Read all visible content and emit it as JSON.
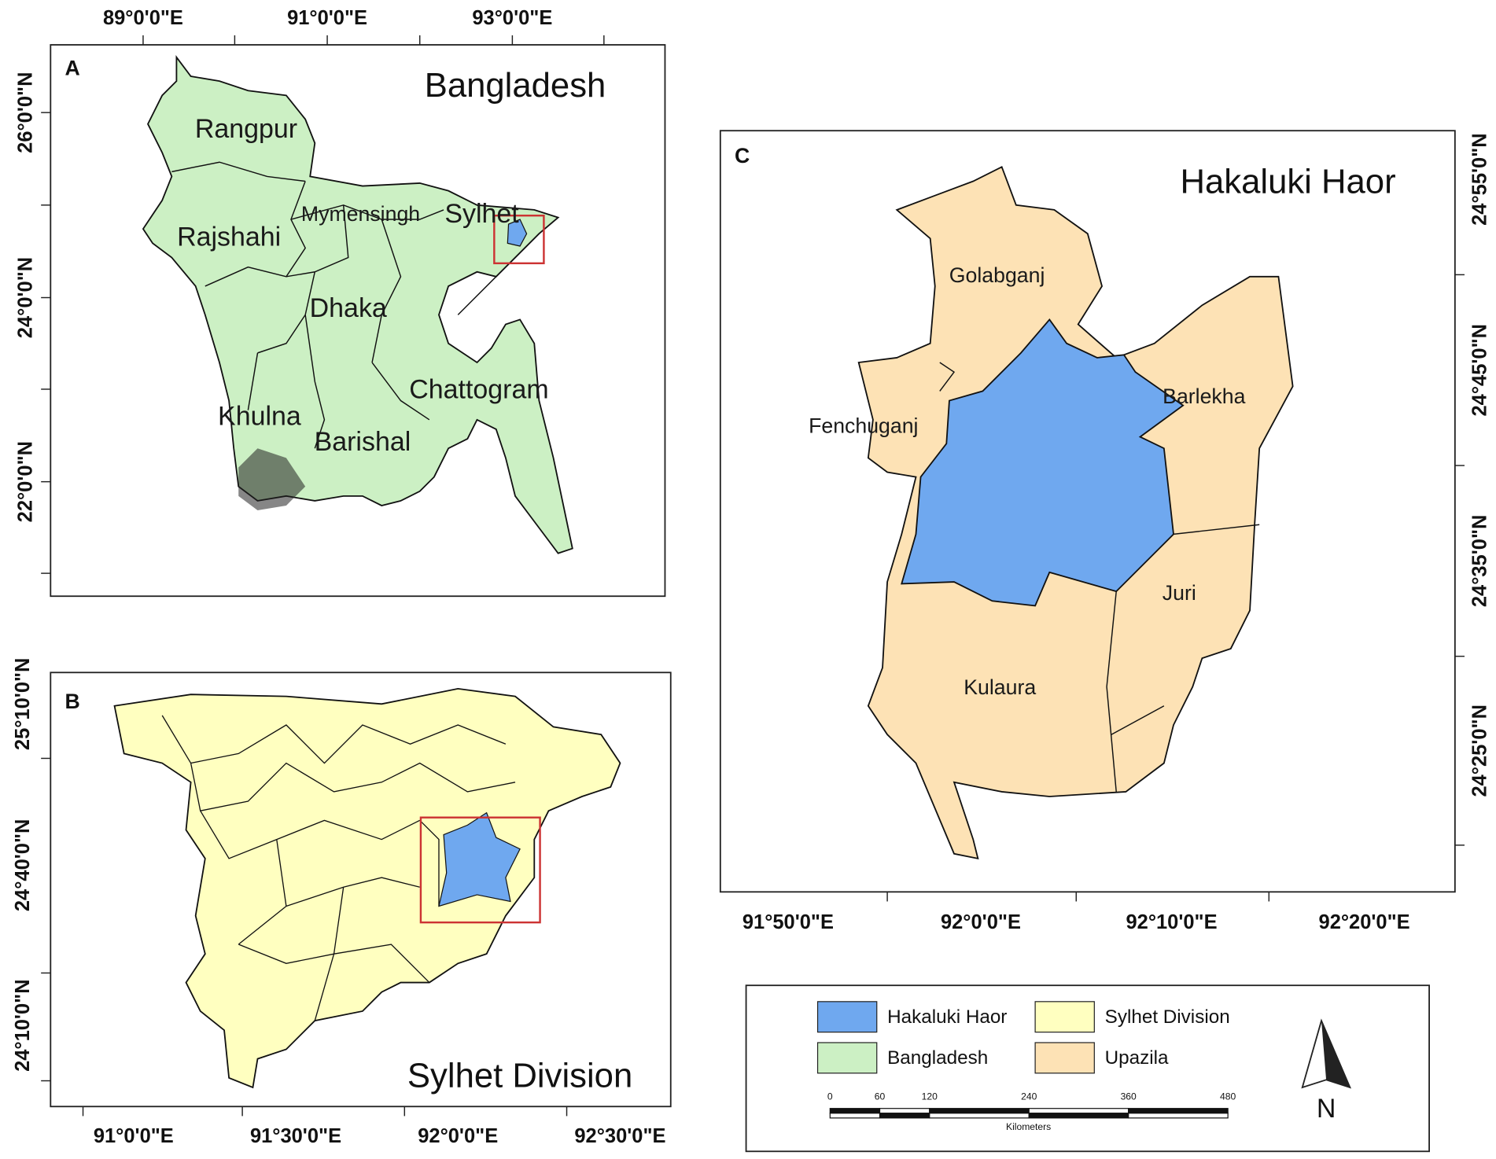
{
  "panels": [
    {
      "letter": "A",
      "title": "Bangladesh",
      "x_labels": [
        "89°0'0\"E",
        "91°0'0\"E",
        "93°0'0\"E"
      ],
      "y_labels": [
        "26°0'0\"N",
        "24°0'0\"N",
        "22°0'0\"N"
      ],
      "regions": [
        "Rangpur",
        "Rajshahi",
        "Mymensingh",
        "Sylhet",
        "Dhaka",
        "Chattogram",
        "Khulna",
        "Barishal"
      ]
    },
    {
      "letter": "B",
      "title": "Sylhet Division",
      "x_labels": [
        "91°0'0\"E",
        "91°30'0\"E",
        "92°0'0\"E",
        "92°30'0\"E"
      ],
      "y_labels": [
        "25°10'0\"N",
        "24°40'0\"N",
        "24°10'0\"N"
      ]
    },
    {
      "letter": "C",
      "title": "Hakaluki Haor",
      "x_labels": [
        "91°50'0\"E",
        "92°0'0\"E",
        "92°10'0\"E",
        "92°20'0\"E"
      ],
      "y_labels": [
        "24°55'0\"N",
        "24°45'0\"N",
        "24°35'0\"N",
        "24°25'0\"N"
      ],
      "regions": [
        "Golabganj",
        "Fenchuganj",
        "Barlekha",
        "Juri",
        "Kulaura"
      ]
    }
  ],
  "legend": [
    "Hakaluki Haor",
    "Sylhet Division",
    "Bangladesh",
    "Upazila"
  ],
  "scale_bar": {
    "ticks": [
      0,
      60,
      120,
      240,
      360,
      480
    ],
    "unit": "Kilometers"
  },
  "north": "N"
}
